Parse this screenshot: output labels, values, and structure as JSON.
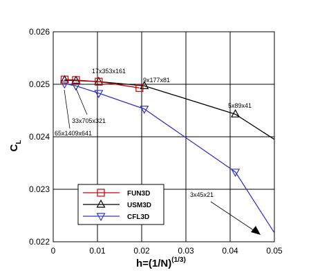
{
  "chart_data": {
    "type": "line",
    "xlabel": {
      "main": "h=(1/N)",
      "sup": "(1/3)"
    },
    "ylabel": {
      "main": "C",
      "sub": "L"
    },
    "xlim": [
      0,
      0.05
    ],
    "ylim": [
      0.022,
      0.026
    ],
    "xticks": [
      0,
      0.01,
      0.02,
      0.03,
      0.04,
      0.05
    ],
    "xtick_labels": [
      "0",
      "0.01",
      "0.02",
      "0.03",
      "0.04",
      "0.05"
    ],
    "yticks": [
      0.022,
      0.023,
      0.024,
      0.025,
      0.026
    ],
    "ytick_labels": [
      "0.022",
      "0.023",
      "0.024",
      "0.025",
      "0.026"
    ],
    "grid": true,
    "legend_position": "bottom-left",
    "series": [
      {
        "name": "FUN3D",
        "color": "#cc0000",
        "marker": "square",
        "x": [
          0.00257,
          0.00514,
          0.01029,
          0.01951
        ],
        "y": [
          0.02509,
          0.02508,
          0.02505,
          0.02493
        ]
      },
      {
        "name": "USM3D",
        "color": "#000000",
        "marker": "triangle-up",
        "x": [
          0.00257,
          0.00514,
          0.01029,
          0.02059,
          0.04118,
          0.05
        ],
        "y": [
          0.02508,
          0.02507,
          0.02505,
          0.02497,
          0.02443,
          0.02395
        ]
      },
      {
        "name": "CFL3D",
        "color": "#3333cc",
        "marker": "triangle-down",
        "x": [
          0.00257,
          0.00514,
          0.01029,
          0.02059,
          0.04118,
          0.05
        ],
        "y": [
          0.02501,
          0.02497,
          0.02483,
          0.02453,
          0.02333,
          0.02217
        ]
      }
    ],
    "annotations": [
      {
        "text": "17x353x161"
      },
      {
        "text": "9x177x81"
      },
      {
        "text": "5x89x41"
      },
      {
        "text": "33x705x321"
      },
      {
        "text": "65x1409x641"
      },
      {
        "text": "3x45x21"
      }
    ]
  }
}
